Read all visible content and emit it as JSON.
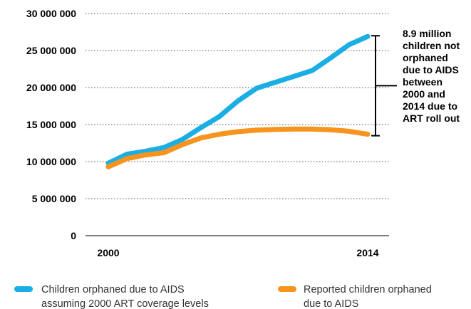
{
  "chart_data": {
    "type": "line",
    "x": [
      2000,
      2001,
      2002,
      2003,
      2004,
      2005,
      2006,
      2007,
      2008,
      2009,
      2010,
      2011,
      2012,
      2013,
      2014
    ],
    "xticks": [
      "2000",
      "2014"
    ],
    "ylim": [
      0,
      30000000
    ],
    "yticks": [
      {
        "value": 0,
        "label": "0"
      },
      {
        "value": 5000000,
        "label": "5 000 000"
      },
      {
        "value": 10000000,
        "label": "10 000 000"
      },
      {
        "value": 15000000,
        "label": "15 000 000"
      },
      {
        "value": 20000000,
        "label": "20 000 000"
      },
      {
        "value": 25000000,
        "label": "25 000 000"
      },
      {
        "value": 30000000,
        "label": "30 000 000"
      }
    ],
    "grid": "horizontal dotted",
    "legend_position": "bottom",
    "series": [
      {
        "name": "Children orphaned due to AIDS assuming 2000 ART coverage levels",
        "legend_lines": [
          "Children orphaned due to AIDS",
          "assuming 2000 ART coverage levels"
        ],
        "color": "#1AAEE5",
        "values": [
          9800000,
          11000000,
          11400000,
          11900000,
          13000000,
          14600000,
          16100000,
          18200000,
          19900000,
          20700000,
          21500000,
          22300000,
          24000000,
          25800000,
          26900000
        ]
      },
      {
        "name": "Reported children orphaned due to AIDS",
        "legend_lines": [
          "Reported children orphaned",
          "due to AIDS"
        ],
        "color": "#F7941D",
        "values": [
          9300000,
          10400000,
          10900000,
          11200000,
          12300000,
          13200000,
          13700000,
          14050000,
          14250000,
          14350000,
          14400000,
          14400000,
          14300000,
          14100000,
          13700000
        ]
      }
    ],
    "annotation": {
      "lines": [
        "8.9 million",
        "children not",
        "orphaned",
        "due to AIDS",
        "between",
        "2000 and",
        "2014 due to",
        "ART roll out"
      ],
      "range": [
        13500000,
        27000000
      ]
    }
  }
}
